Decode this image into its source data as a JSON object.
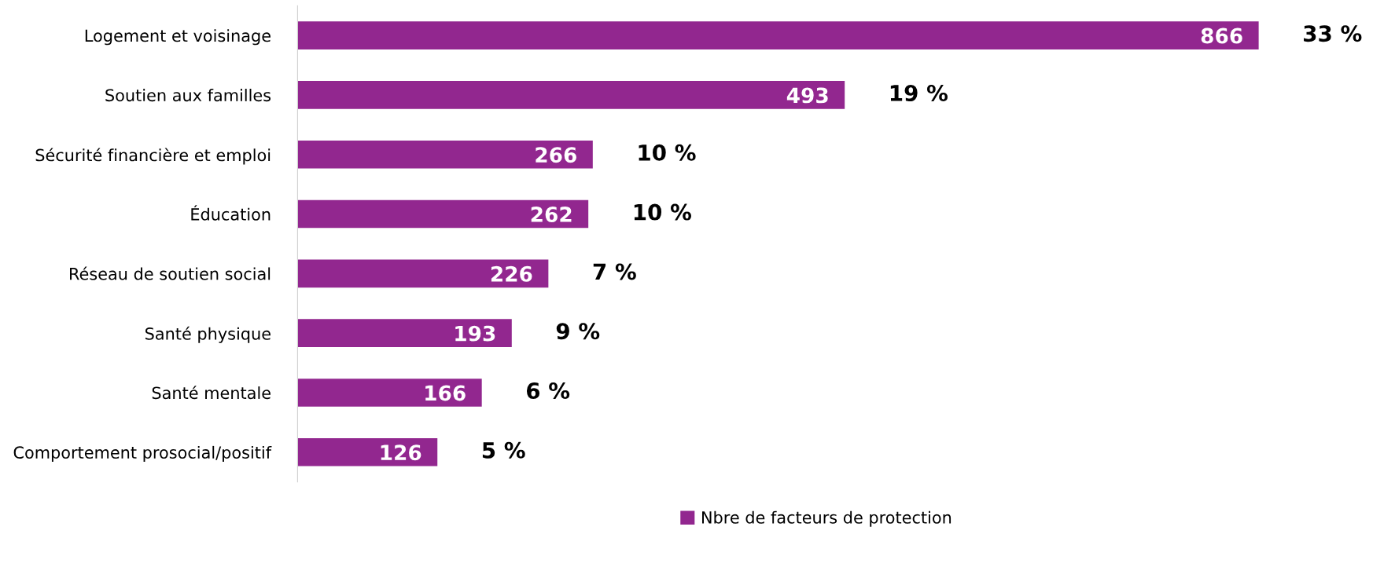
{
  "chart_data": {
    "type": "bar",
    "orientation": "horizontal",
    "categories": [
      "Logement et voisinage",
      "Soutien aux familles",
      "Sécurité financière et emploi",
      "Éducation",
      "Réseau de soutien social",
      "Santé physique",
      "Santé mentale",
      "Comportement prosocial/positif"
    ],
    "series": [
      {
        "name": "Nbre de facteurs de protection",
        "color": "#92278f",
        "values": [
          866,
          493,
          266,
          262,
          226,
          193,
          166,
          126
        ]
      }
    ],
    "data_labels": true,
    "legend": "bottom",
    "grid": false,
    "annotations": [
      {
        "text": "33 %",
        "x": 866,
        "y": "Logement et voisinage"
      },
      {
        "text": "19 %",
        "x": 493,
        "y": "Soutien aux familles"
      },
      {
        "text": "10 %",
        "x": 266,
        "y": "Sécurité financière et emploi"
      },
      {
        "text": "10 %",
        "x": 262,
        "y": "Éducation"
      },
      {
        "text": "7 %",
        "x": 226,
        "y": "Réseau de soutien social"
      },
      {
        "text": "9 %",
        "x": 193,
        "y": "Santé physique"
      },
      {
        "text": "6 %",
        "x": 166,
        "y": "Santé mentale"
      },
      {
        "text": "5 %",
        "x": 126,
        "y": "Comportement prosocial/positif"
      }
    ]
  }
}
